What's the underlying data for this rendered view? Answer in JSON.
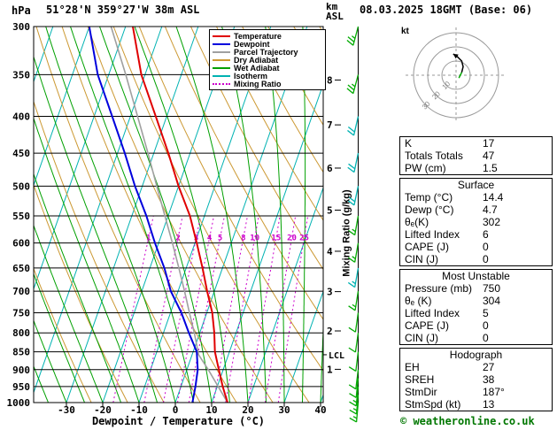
{
  "header": {
    "pressure_unit": "hPa",
    "station": "51°28'N 359°27'W 38m ASL",
    "altitude_unit_line1": "km",
    "altitude_unit_line2": "ASL",
    "datetime": "08.03.2025 18GMT (Base: 06)"
  },
  "chart_data": {
    "type": "skewt-log-p",
    "xlabel": "Dewpoint / Temperature (°C)",
    "x_ticks": [
      -30,
      -20,
      -10,
      0,
      10,
      20,
      30,
      40
    ],
    "pressure_range": [
      300,
      1000
    ],
    "pressure_levels": [
      300,
      350,
      400,
      450,
      500,
      550,
      600,
      650,
      700,
      750,
      800,
      850,
      900,
      950,
      1000
    ],
    "km_asl_ticks": [
      {
        "km": 1,
        "p": 899
      },
      {
        "km": 2,
        "p": 795
      },
      {
        "km": 3,
        "p": 701
      },
      {
        "km": 4,
        "p": 616
      },
      {
        "km": 5,
        "p": 540
      },
      {
        "km": 6,
        "p": 472
      },
      {
        "km": 7,
        "p": 411
      },
      {
        "km": 8,
        "p": 356
      }
    ],
    "lcl": {
      "label": "LCL",
      "pressure": 858
    },
    "mixing_ratio_label": "Mixing Ratio (g/kg)",
    "mixing_ratio_values": [
      1,
      2,
      3,
      4,
      5,
      8,
      10,
      15,
      20,
      25
    ],
    "isotherms_c": {
      "min": -140,
      "max": 40,
      "step": 10
    },
    "dry_adiabats_k": {
      "min": 250,
      "max": 440,
      "step": 10
    },
    "wet_adiabats_c": {
      "min": -40,
      "max": 40,
      "step": 5
    },
    "legend": [
      {
        "label": "Temperature",
        "color": "#e00000",
        "style": "solid"
      },
      {
        "label": "Dewpoint",
        "color": "#0000dd",
        "style": "solid"
      },
      {
        "label": "Parcel Trajectory",
        "color": "#a0a0a0",
        "style": "solid"
      },
      {
        "label": "Dry Adiabat",
        "color": "#cc9933",
        "style": "solid"
      },
      {
        "label": "Wet Adiabat",
        "color": "#00a000",
        "style": "solid"
      },
      {
        "label": "Isotherm",
        "color": "#00b2b2",
        "style": "solid"
      },
      {
        "label": "Mixing Ratio",
        "color": "#cc00cc",
        "style": "dotted"
      }
    ],
    "sounding": {
      "pressure": [
        1000,
        950,
        900,
        850,
        800,
        750,
        700,
        650,
        600,
        550,
        500,
        450,
        400,
        350,
        300
      ],
      "temperature": [
        14.4,
        11.5,
        8.8,
        6.0,
        4.0,
        1.5,
        -2.0,
        -5.5,
        -9.5,
        -14.0,
        -20.0,
        -26.0,
        -33.0,
        -41.0,
        -48.0
      ],
      "dewpoint": [
        4.7,
        4.0,
        3.0,
        1.0,
        -3.0,
        -7.0,
        -12.0,
        -16.0,
        -21.0,
        -26.0,
        -32.0,
        -38.0,
        -45.0,
        -53.0,
        -60.0
      ]
    },
    "parcel_trajectory": [
      [
        1000,
        14.4
      ],
      [
        900,
        5.9
      ],
      [
        858,
        1.8
      ],
      [
        800,
        -1.5
      ],
      [
        750,
        -4.8
      ],
      [
        700,
        -8.2
      ],
      [
        650,
        -12.0
      ],
      [
        600,
        -16.2
      ],
      [
        550,
        -20.9
      ],
      [
        500,
        -26.0
      ],
      [
        450,
        -31.6
      ],
      [
        400,
        -38.0
      ],
      [
        350,
        -45.3
      ],
      [
        300,
        -54.0
      ]
    ],
    "wind_barbs": [
      {
        "p": 300,
        "speed": 25,
        "dir": 195,
        "color": "#00aa00"
      },
      {
        "p": 350,
        "speed": 25,
        "dir": 195,
        "color": "#00aa00"
      },
      {
        "p": 400,
        "speed": 20,
        "dir": 193,
        "color": "#00b2b2"
      },
      {
        "p": 450,
        "speed": 20,
        "dir": 192,
        "color": "#00b2b2"
      },
      {
        "p": 500,
        "speed": 20,
        "dir": 192,
        "color": "#00b2b2"
      },
      {
        "p": 550,
        "speed": 15,
        "dir": 190,
        "color": "#00aa00"
      },
      {
        "p": 600,
        "speed": 15,
        "dir": 190,
        "color": "#00aa00"
      },
      {
        "p": 650,
        "speed": 15,
        "dir": 190,
        "color": "#00b2b2"
      },
      {
        "p": 700,
        "speed": 15,
        "dir": 189,
        "color": "#00aa00"
      },
      {
        "p": 750,
        "speed": 10,
        "dir": 188,
        "color": "#00aa00"
      },
      {
        "p": 800,
        "speed": 10,
        "dir": 188,
        "color": "#00aa00"
      },
      {
        "p": 850,
        "speed": 10,
        "dir": 187,
        "color": "#00aa00"
      },
      {
        "p": 900,
        "speed": 10,
        "dir": 187,
        "color": "#00aa00"
      },
      {
        "p": 925,
        "speed": 10,
        "dir": 186,
        "color": "#00aa00"
      },
      {
        "p": 950,
        "speed": 13,
        "dir": 186,
        "color": "#00aa00"
      },
      {
        "p": 975,
        "speed": 13,
        "dir": 185,
        "color": "#00aa00"
      },
      {
        "p": 1000,
        "speed": 13,
        "dir": 185,
        "color": "#00aa00"
      }
    ]
  },
  "hodograph": {
    "unit_label": "kt",
    "rings_kt": [
      10,
      20,
      30
    ],
    "ring_label_color": "#808080",
    "trace_uv_kt": [
      [
        2,
        -2
      ],
      [
        4,
        2
      ],
      [
        5,
        6
      ],
      [
        4,
        10
      ],
      [
        1,
        13
      ],
      [
        -2,
        15
      ]
    ]
  },
  "panel": {
    "indices": {
      "rows": [
        {
          "label": "K",
          "value": "17"
        },
        {
          "label": "Totals Totals",
          "value": "47"
        },
        {
          "label": "PW (cm)",
          "value": "1.5"
        }
      ]
    },
    "surface": {
      "title": "Surface",
      "rows": [
        {
          "label": "Temp (°C)",
          "value": "14.4"
        },
        {
          "label": "Dewp (°C)",
          "value": "4.7"
        },
        {
          "label": "θₑ(K)",
          "value": "302"
        },
        {
          "label": "Lifted Index",
          "value": "6"
        },
        {
          "label": "CAPE (J)",
          "value": "0"
        },
        {
          "label": "CIN (J)",
          "value": "0"
        }
      ]
    },
    "most_unstable": {
      "title": "Most Unstable",
      "rows": [
        {
          "label": "Pressure (mb)",
          "value": "750"
        },
        {
          "label": "θₑ (K)",
          "value": "304"
        },
        {
          "label": "Lifted Index",
          "value": "5"
        },
        {
          "label": "CAPE (J)",
          "value": "0"
        },
        {
          "label": "CIN (J)",
          "value": "0"
        }
      ]
    },
    "hodograph": {
      "title": "Hodograph",
      "rows": [
        {
          "label": "EH",
          "value": "27"
        },
        {
          "label": "SREH",
          "value": "38"
        },
        {
          "label": "StmDir",
          "value": "187°"
        },
        {
          "label": "StmSpd (kt)",
          "value": "13"
        }
      ]
    }
  },
  "footer": {
    "copyright": "© weatheronline.co.uk"
  }
}
